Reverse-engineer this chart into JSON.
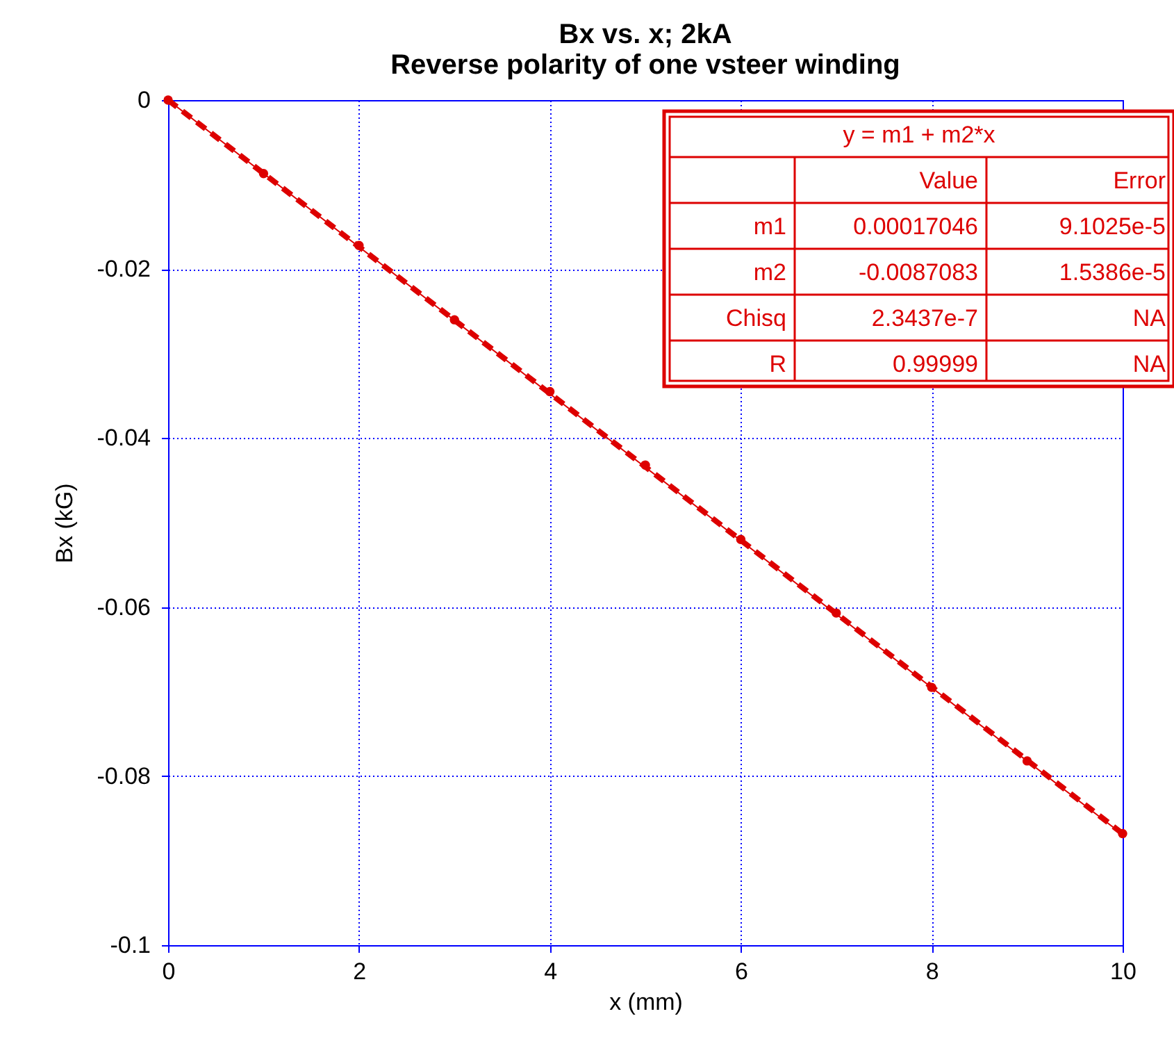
{
  "chart_data": {
    "type": "scatter",
    "title": "Bx vs. x; 2kA\nReverse polarity of one vsteer winding",
    "xlabel": "x (mm)",
    "ylabel": "Bx (kG)",
    "xlim": [
      0,
      10
    ],
    "xticks": [
      0,
      2,
      4,
      6,
      8,
      10
    ],
    "ylim": [
      -0.1,
      0
    ],
    "yticks": [
      -0.1,
      -0.08,
      -0.06,
      -0.04,
      -0.02,
      0
    ],
    "grid": true,
    "series": [
      {
        "color": "#dd0000",
        "marker": "circle",
        "x": [
          0,
          1,
          2,
          3,
          4,
          5,
          6,
          7,
          8,
          9,
          10
        ],
        "values": [
          0,
          -0.0087,
          -0.0172,
          -0.026,
          -0.0345,
          -0.0432,
          -0.052,
          -0.0607,
          -0.0695,
          -0.0782,
          -0.0868
        ]
      },
      {
        "type": "line",
        "color": "#dd0000",
        "line_style": "dashed",
        "x": [
          0,
          10
        ],
        "values": [
          0,
          -0.0868
        ]
      },
      {
        "type": "line",
        "color": "#dd0000",
        "line_style": "solid",
        "x": [
          0,
          10
        ],
        "values": [
          0,
          -0.0869
        ]
      }
    ],
    "annotations": [
      "y = m1 + m2*x",
      "Value",
      "Error",
      "m1",
      "0.00017046",
      "9.1025e-5",
      "m2",
      "-0.0087083",
      "1.5386e-5",
      "Chisq",
      "2.3437e-7",
      "NA",
      "R",
      "0.99999",
      "NA"
    ]
  }
}
